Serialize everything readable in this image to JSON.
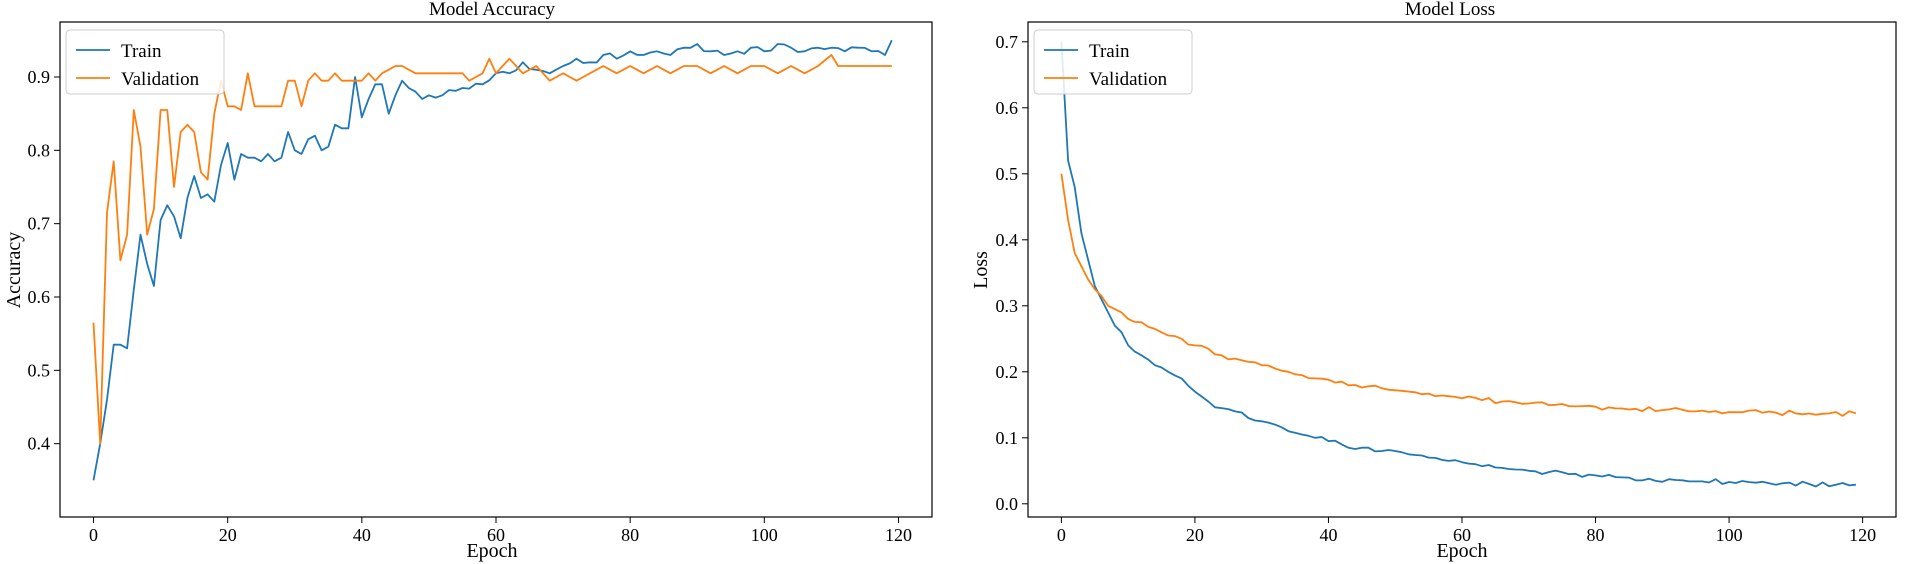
{
  "chart_data": [
    {
      "id": "accuracy",
      "type": "line",
      "title": "Model Accuracy",
      "xlabel": "Epoch",
      "ylabel": "Accuracy",
      "xlim": [
        -5,
        125
      ],
      "ylim": [
        0.3,
        0.975
      ],
      "xticks": [
        0,
        20,
        40,
        60,
        80,
        100,
        120
      ],
      "yticks": [
        0.4,
        0.5,
        0.6,
        0.7,
        0.8,
        0.9
      ],
      "ytick_decimals": 1,
      "grid": false,
      "legend": "top-left",
      "series": [
        {
          "name": "Train",
          "color": "#1f77b4",
          "anchors": [
            [
              0,
              0.35
            ],
            [
              1,
              0.4
            ],
            [
              2,
              0.46
            ],
            [
              3,
              0.535
            ],
            [
              4,
              0.535
            ],
            [
              5,
              0.53
            ],
            [
              6,
              0.61
            ],
            [
              7,
              0.685
            ],
            [
              8,
              0.645
            ],
            [
              9,
              0.615
            ],
            [
              10,
              0.705
            ],
            [
              11,
              0.725
            ],
            [
              12,
              0.71
            ],
            [
              13,
              0.68
            ],
            [
              14,
              0.735
            ],
            [
              15,
              0.765
            ],
            [
              16,
              0.735
            ],
            [
              17,
              0.74
            ],
            [
              18,
              0.73
            ],
            [
              19,
              0.78
            ],
            [
              20,
              0.81
            ],
            [
              21,
              0.76
            ],
            [
              22,
              0.795
            ],
            [
              23,
              0.79
            ],
            [
              24,
              0.79
            ],
            [
              25,
              0.785
            ],
            [
              26,
              0.795
            ],
            [
              27,
              0.785
            ],
            [
              28,
              0.79
            ],
            [
              29,
              0.825
            ],
            [
              30,
              0.8
            ],
            [
              31,
              0.795
            ],
            [
              32,
              0.815
            ],
            [
              33,
              0.82
            ],
            [
              34,
              0.8
            ],
            [
              35,
              0.805
            ],
            [
              36,
              0.835
            ],
            [
              37,
              0.83
            ],
            [
              38,
              0.83
            ],
            [
              39,
              0.9
            ],
            [
              40,
              0.845
            ],
            [
              41,
              0.87
            ],
            [
              42,
              0.89
            ],
            [
              43,
              0.89
            ],
            [
              44,
              0.85
            ],
            [
              45,
              0.875
            ],
            [
              46,
              0.895
            ],
            [
              47,
              0.885
            ],
            [
              48,
              0.88
            ],
            [
              49,
              0.87
            ],
            [
              50,
              0.875
            ],
            [
              52,
              0.875
            ],
            [
              55,
              0.885
            ],
            [
              58,
              0.89
            ],
            [
              60,
              0.905
            ],
            [
              62,
              0.905
            ],
            [
              64,
              0.92
            ],
            [
              66,
              0.91
            ],
            [
              68,
              0.905
            ],
            [
              70,
              0.915
            ],
            [
              72,
              0.925
            ],
            [
              74,
              0.92
            ],
            [
              76,
              0.93
            ],
            [
              78,
              0.925
            ],
            [
              80,
              0.935
            ],
            [
              82,
              0.93
            ],
            [
              84,
              0.935
            ],
            [
              86,
              0.93
            ],
            [
              88,
              0.94
            ],
            [
              90,
              0.945
            ],
            [
              92,
              0.935
            ],
            [
              94,
              0.93
            ],
            [
              96,
              0.935
            ],
            [
              98,
              0.94
            ],
            [
              100,
              0.935
            ],
            [
              102,
              0.945
            ],
            [
              104,
              0.94
            ],
            [
              106,
              0.935
            ],
            [
              108,
              0.94
            ],
            [
              110,
              0.94
            ],
            [
              112,
              0.935
            ],
            [
              114,
              0.94
            ],
            [
              116,
              0.935
            ],
            [
              118,
              0.93
            ],
            [
              119,
              0.95
            ]
          ],
          "jitter": 0.006
        },
        {
          "name": "Validation",
          "color": "#ff7f0e",
          "anchors": [
            [
              0,
              0.565
            ],
            [
              1,
              0.4
            ],
            [
              2,
              0.715
            ],
            [
              3,
              0.785
            ],
            [
              4,
              0.65
            ],
            [
              5,
              0.685
            ],
            [
              6,
              0.855
            ],
            [
              7,
              0.805
            ],
            [
              8,
              0.685
            ],
            [
              9,
              0.72
            ],
            [
              10,
              0.855
            ],
            [
              11,
              0.855
            ],
            [
              12,
              0.75
            ],
            [
              13,
              0.825
            ],
            [
              14,
              0.835
            ],
            [
              15,
              0.825
            ],
            [
              16,
              0.77
            ],
            [
              17,
              0.76
            ],
            [
              18,
              0.85
            ],
            [
              19,
              0.895
            ],
            [
              20,
              0.86
            ],
            [
              21,
              0.86
            ],
            [
              22,
              0.855
            ],
            [
              23,
              0.905
            ],
            [
              24,
              0.86
            ],
            [
              25,
              0.86
            ],
            [
              28,
              0.86
            ],
            [
              29,
              0.895
            ],
            [
              30,
              0.895
            ],
            [
              31,
              0.86
            ],
            [
              32,
              0.895
            ],
            [
              33,
              0.905
            ],
            [
              34,
              0.895
            ],
            [
              35,
              0.895
            ],
            [
              36,
              0.905
            ],
            [
              37,
              0.895
            ],
            [
              40,
              0.895
            ],
            [
              41,
              0.905
            ],
            [
              42,
              0.895
            ],
            [
              43,
              0.905
            ],
            [
              45,
              0.915
            ],
            [
              46,
              0.915
            ],
            [
              48,
              0.905
            ],
            [
              55,
              0.905
            ],
            [
              56,
              0.895
            ],
            [
              58,
              0.905
            ],
            [
              59,
              0.925
            ],
            [
              60,
              0.905
            ],
            [
              62,
              0.925
            ],
            [
              64,
              0.905
            ],
            [
              66,
              0.915
            ],
            [
              68,
              0.895
            ],
            [
              70,
              0.905
            ],
            [
              72,
              0.895
            ],
            [
              74,
              0.905
            ],
            [
              76,
              0.915
            ],
            [
              78,
              0.905
            ],
            [
              80,
              0.915
            ],
            [
              82,
              0.905
            ],
            [
              84,
              0.915
            ],
            [
              86,
              0.905
            ],
            [
              88,
              0.915
            ],
            [
              90,
              0.915
            ],
            [
              92,
              0.905
            ],
            [
              94,
              0.915
            ],
            [
              96,
              0.905
            ],
            [
              98,
              0.915
            ],
            [
              100,
              0.915
            ],
            [
              102,
              0.905
            ],
            [
              104,
              0.915
            ],
            [
              106,
              0.905
            ],
            [
              108,
              0.915
            ],
            [
              110,
              0.93
            ],
            [
              111,
              0.915
            ],
            [
              119,
              0.915
            ]
          ],
          "jitter": 0.0
        }
      ]
    },
    {
      "id": "loss",
      "type": "line",
      "title": "Model Loss",
      "xlabel": "Epoch",
      "ylabel": "Loss",
      "xlim": [
        -5,
        125
      ],
      "ylim": [
        -0.02,
        0.73
      ],
      "xticks": [
        0,
        20,
        40,
        60,
        80,
        100,
        120
      ],
      "yticks": [
        0.0,
        0.1,
        0.2,
        0.3,
        0.4,
        0.5,
        0.6,
        0.7
      ],
      "ytick_decimals": 1,
      "grid": false,
      "legend": "top-left",
      "series": [
        {
          "name": "Train",
          "color": "#1f77b4",
          "anchors": [
            [
              0,
              0.7
            ],
            [
              1,
              0.52
            ],
            [
              2,
              0.48
            ],
            [
              3,
              0.41
            ],
            [
              4,
              0.37
            ],
            [
              5,
              0.33
            ],
            [
              6,
              0.31
            ],
            [
              7,
              0.29
            ],
            [
              8,
              0.27
            ],
            [
              9,
              0.26
            ],
            [
              10,
              0.24
            ],
            [
              12,
              0.225
            ],
            [
              14,
              0.21
            ],
            [
              16,
              0.2
            ],
            [
              18,
              0.19
            ],
            [
              20,
              0.17
            ],
            [
              22,
              0.155
            ],
            [
              24,
              0.145
            ],
            [
              26,
              0.14
            ],
            [
              28,
              0.13
            ],
            [
              30,
              0.125
            ],
            [
              32,
              0.12
            ],
            [
              34,
              0.11
            ],
            [
              36,
              0.105
            ],
            [
              38,
              0.1
            ],
            [
              40,
              0.095
            ],
            [
              42,
              0.09
            ],
            [
              45,
              0.085
            ],
            [
              48,
              0.08
            ],
            [
              50,
              0.08
            ],
            [
              52,
              0.075
            ],
            [
              55,
              0.07
            ],
            [
              58,
              0.065
            ],
            [
              60,
              0.063
            ],
            [
              62,
              0.06
            ],
            [
              65,
              0.055
            ],
            [
              68,
              0.052
            ],
            [
              70,
              0.05
            ],
            [
              73,
              0.048
            ],
            [
              76,
              0.045
            ],
            [
              80,
              0.043
            ],
            [
              84,
              0.04
            ],
            [
              88,
              0.038
            ],
            [
              92,
              0.036
            ],
            [
              96,
              0.034
            ],
            [
              100,
              0.033
            ],
            [
              104,
              0.032
            ],
            [
              108,
              0.031
            ],
            [
              112,
              0.03
            ],
            [
              116,
              0.029
            ],
            [
              119,
              0.029
            ]
          ],
          "jitter": 0.004
        },
        {
          "name": "Validation",
          "color": "#ff7f0e",
          "anchors": [
            [
              0,
              0.5
            ],
            [
              1,
              0.43
            ],
            [
              2,
              0.38
            ],
            [
              3,
              0.36
            ],
            [
              4,
              0.34
            ],
            [
              5,
              0.325
            ],
            [
              6,
              0.315
            ],
            [
              7,
              0.3
            ],
            [
              8,
              0.295
            ],
            [
              9,
              0.29
            ],
            [
              10,
              0.28
            ],
            [
              12,
              0.275
            ],
            [
              14,
              0.265
            ],
            [
              16,
              0.255
            ],
            [
              18,
              0.25
            ],
            [
              20,
              0.24
            ],
            [
              22,
              0.235
            ],
            [
              24,
              0.225
            ],
            [
              26,
              0.22
            ],
            [
              28,
              0.215
            ],
            [
              30,
              0.21
            ],
            [
              32,
              0.205
            ],
            [
              34,
              0.2
            ],
            [
              36,
              0.195
            ],
            [
              38,
              0.19
            ],
            [
              40,
              0.188
            ],
            [
              42,
              0.185
            ],
            [
              44,
              0.18
            ],
            [
              46,
              0.178
            ],
            [
              48,
              0.175
            ],
            [
              50,
              0.172
            ],
            [
              52,
              0.17
            ],
            [
              55,
              0.167
            ],
            [
              58,
              0.163
            ],
            [
              60,
              0.16
            ],
            [
              63,
              0.157
            ],
            [
              66,
              0.155
            ],
            [
              70,
              0.152
            ],
            [
              74,
              0.15
            ],
            [
              78,
              0.148
            ],
            [
              82,
              0.146
            ],
            [
              86,
              0.144
            ],
            [
              90,
              0.142
            ],
            [
              95,
              0.14
            ],
            [
              100,
              0.139
            ],
            [
              105,
              0.138
            ],
            [
              110,
              0.137
            ],
            [
              115,
              0.137
            ],
            [
              119,
              0.137
            ]
          ],
          "jitter": 0.004
        }
      ]
    }
  ]
}
